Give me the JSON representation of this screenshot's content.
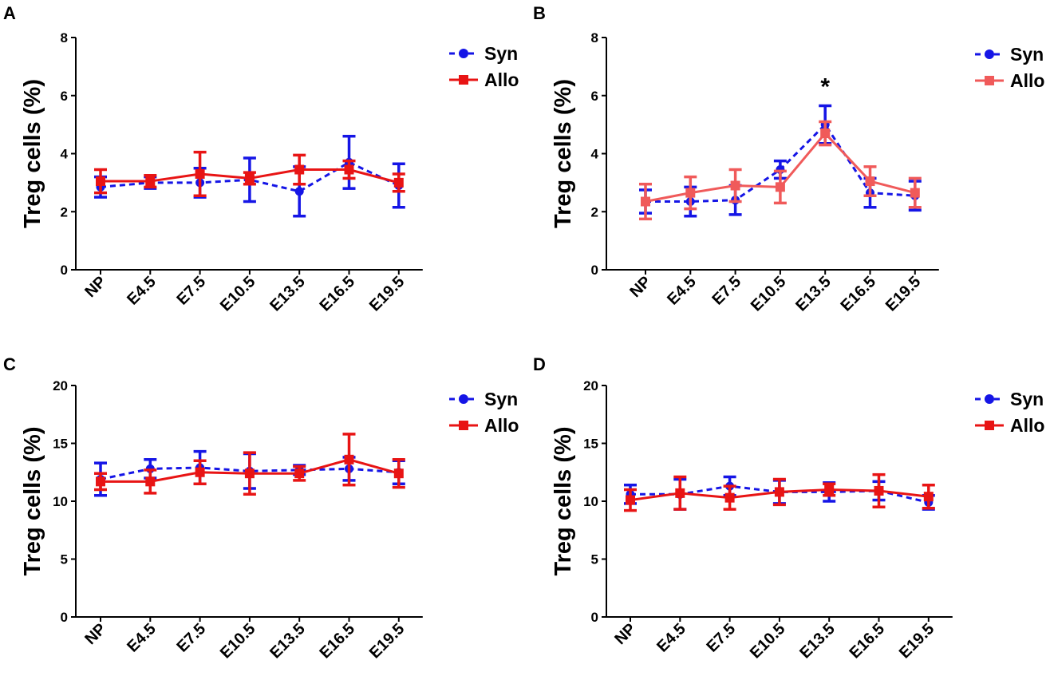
{
  "figure": {
    "panel_count": 4
  },
  "chart_data": [
    {
      "panel": "A",
      "type": "line",
      "title": "",
      "xlabel": "",
      "ylabel": "Treg cells (%)",
      "categories": [
        "NP",
        "E4.5",
        "E7.5",
        "E10.5",
        "E13.5",
        "E16.5",
        "E19.5"
      ],
      "ylim": [
        0,
        8
      ],
      "yticks": [
        "0",
        "2",
        "4",
        "6",
        "8"
      ],
      "grid": false,
      "legend_position": "top-right",
      "series": [
        {
          "name": "Syn",
          "color": "#1515e6",
          "line_style": "dashed",
          "marker": "circle",
          "values": [
            2.85,
            3.0,
            3.0,
            3.1,
            2.7,
            3.7,
            2.9
          ],
          "errors": [
            0.35,
            0.2,
            0.5,
            0.75,
            0.85,
            0.9,
            0.75
          ]
        },
        {
          "name": "Allo",
          "color": "#e81414",
          "line_style": "solid",
          "marker": "square",
          "values": [
            3.05,
            3.05,
            3.3,
            3.15,
            3.45,
            3.45,
            3.0
          ],
          "errors": [
            0.4,
            0.2,
            0.75,
            0.2,
            0.5,
            0.3,
            0.3
          ]
        }
      ],
      "annotations": []
    },
    {
      "panel": "B",
      "type": "line",
      "title": "",
      "xlabel": "",
      "ylabel": "Treg cells (%)",
      "categories": [
        "NP",
        "E4.5",
        "E7.5",
        "E10.5",
        "E13.5",
        "E16.5",
        "E19.5"
      ],
      "ylim": [
        0,
        8
      ],
      "yticks": [
        "0",
        "2",
        "4",
        "6",
        "8"
      ],
      "grid": false,
      "legend_position": "top-right",
      "series": [
        {
          "name": "Syn",
          "color": "#1515e6",
          "line_style": "dashed",
          "marker": "circle",
          "values": [
            2.35,
            2.35,
            2.4,
            3.45,
            5.0,
            2.65,
            2.55
          ],
          "errors": [
            0.4,
            0.5,
            0.5,
            0.3,
            0.65,
            0.5,
            0.5
          ]
        },
        {
          "name": "Allo",
          "color": "#f05a5a",
          "line_style": "solid",
          "marker": "square",
          "values": [
            2.35,
            2.65,
            2.9,
            2.85,
            4.7,
            3.05,
            2.65
          ],
          "errors": [
            0.6,
            0.55,
            0.55,
            0.55,
            0.4,
            0.5,
            0.5
          ]
        }
      ],
      "annotations": [
        {
          "text": "*",
          "category": "E13.5"
        }
      ]
    },
    {
      "panel": "C",
      "type": "line",
      "title": "",
      "xlabel": "",
      "ylabel": "Treg cells (%)",
      "categories": [
        "NP",
        "E4.5",
        "E7.5",
        "E10.5",
        "E13.5",
        "E16.5",
        "E19.5"
      ],
      "ylim": [
        0,
        20
      ],
      "yticks": [
        "0",
        "5",
        "10",
        "15",
        "20"
      ],
      "grid": false,
      "legend_position": "top-right",
      "series": [
        {
          "name": "Syn",
          "color": "#1515e6",
          "line_style": "dashed",
          "marker": "circle",
          "values": [
            11.9,
            12.8,
            12.9,
            12.6,
            12.7,
            12.8,
            12.5
          ],
          "errors": [
            1.4,
            0.8,
            1.4,
            1.5,
            0.4,
            1.0,
            1.0
          ]
        },
        {
          "name": "Allo",
          "color": "#e81414",
          "line_style": "solid",
          "marker": "square",
          "values": [
            11.7,
            11.7,
            12.5,
            12.4,
            12.4,
            13.6,
            12.4
          ],
          "errors": [
            0.7,
            1.0,
            1.0,
            1.8,
            0.6,
            2.2,
            1.2
          ]
        }
      ],
      "annotations": []
    },
    {
      "panel": "D",
      "type": "line",
      "title": "",
      "xlabel": "",
      "ylabel": "Treg cells (%)",
      "categories": [
        "NP",
        "E4.5",
        "E7.5",
        "E10.5",
        "E13.5",
        "E16.5",
        "E19.5"
      ],
      "ylim": [
        0,
        20
      ],
      "yticks": [
        "0",
        "5",
        "10",
        "15",
        "20"
      ],
      "grid": false,
      "legend_position": "top-right",
      "series": [
        {
          "name": "Syn",
          "color": "#1515e6",
          "line_style": "dashed",
          "marker": "circle",
          "values": [
            10.6,
            10.6,
            11.3,
            10.8,
            10.8,
            10.9,
            9.9
          ],
          "errors": [
            0.8,
            1.3,
            0.8,
            1.0,
            0.8,
            0.8,
            0.6
          ]
        },
        {
          "name": "Allo",
          "color": "#e81414",
          "line_style": "solid",
          "marker": "square",
          "values": [
            10.1,
            10.7,
            10.3,
            10.8,
            11.0,
            10.9,
            10.4
          ],
          "errors": [
            0.9,
            1.4,
            1.0,
            1.1,
            0.5,
            1.4,
            1.0
          ]
        }
      ],
      "annotations": []
    }
  ]
}
